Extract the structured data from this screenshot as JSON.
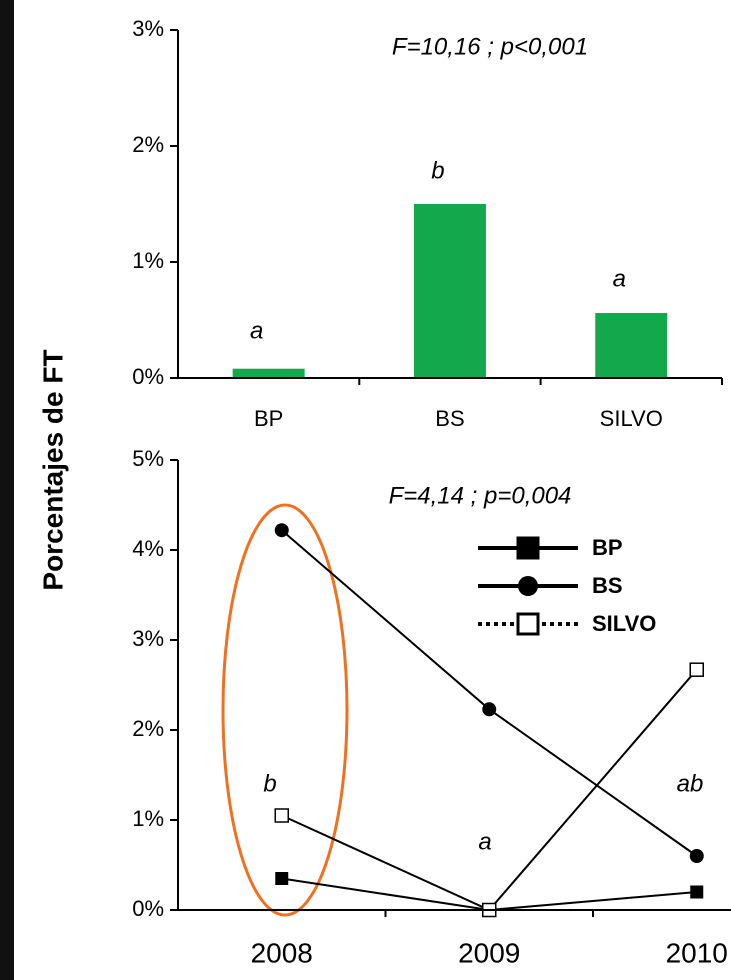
{
  "chart_data": [
    {
      "type": "bar",
      "ylabel": "Porcentajes de FT",
      "annotation": "F=10,16 ; p<0,001",
      "categories": [
        "BP",
        "BS",
        "SILVO"
      ],
      "values": [
        0.08,
        1.5,
        0.56
      ],
      "color": "#12a84b",
      "letters": [
        "a",
        "b",
        "a"
      ],
      "ylim": [
        0,
        3
      ],
      "yticks": [
        {
          "value": 0,
          "label": "0%"
        },
        {
          "value": 1,
          "label": "1%"
        },
        {
          "value": 2,
          "label": "2%"
        },
        {
          "value": 3,
          "label": "3%"
        }
      ]
    },
    {
      "type": "line",
      "annotation": "F=4,14 ; p=0,004",
      "categories": [
        "2008",
        "2009",
        "2010"
      ],
      "letters": [
        "b",
        "a",
        "ab"
      ],
      "series": [
        {
          "name": "BP",
          "color": "#000000",
          "marker": "square",
          "line_style": "solid",
          "values": [
            0.35,
            0,
            0.2
          ]
        },
        {
          "name": "BS",
          "color": "#000000",
          "marker": "circle",
          "line_style": "solid",
          "values": [
            4.22,
            2.23,
            0.6
          ]
        },
        {
          "name": "SILVO",
          "color": "#000000",
          "marker": "open-square",
          "line_style": "dotted",
          "values": [
            1.05,
            0,
            2.67
          ]
        }
      ],
      "ylim": [
        0,
        5
      ],
      "yticks": [
        {
          "value": 0,
          "label": "0%"
        },
        {
          "value": 1,
          "label": "1%"
        },
        {
          "value": 2,
          "label": "2%"
        },
        {
          "value": 3,
          "label": "3%"
        },
        {
          "value": 4,
          "label": "4%"
        },
        {
          "value": 5,
          "label": "5%"
        }
      ]
    }
  ]
}
